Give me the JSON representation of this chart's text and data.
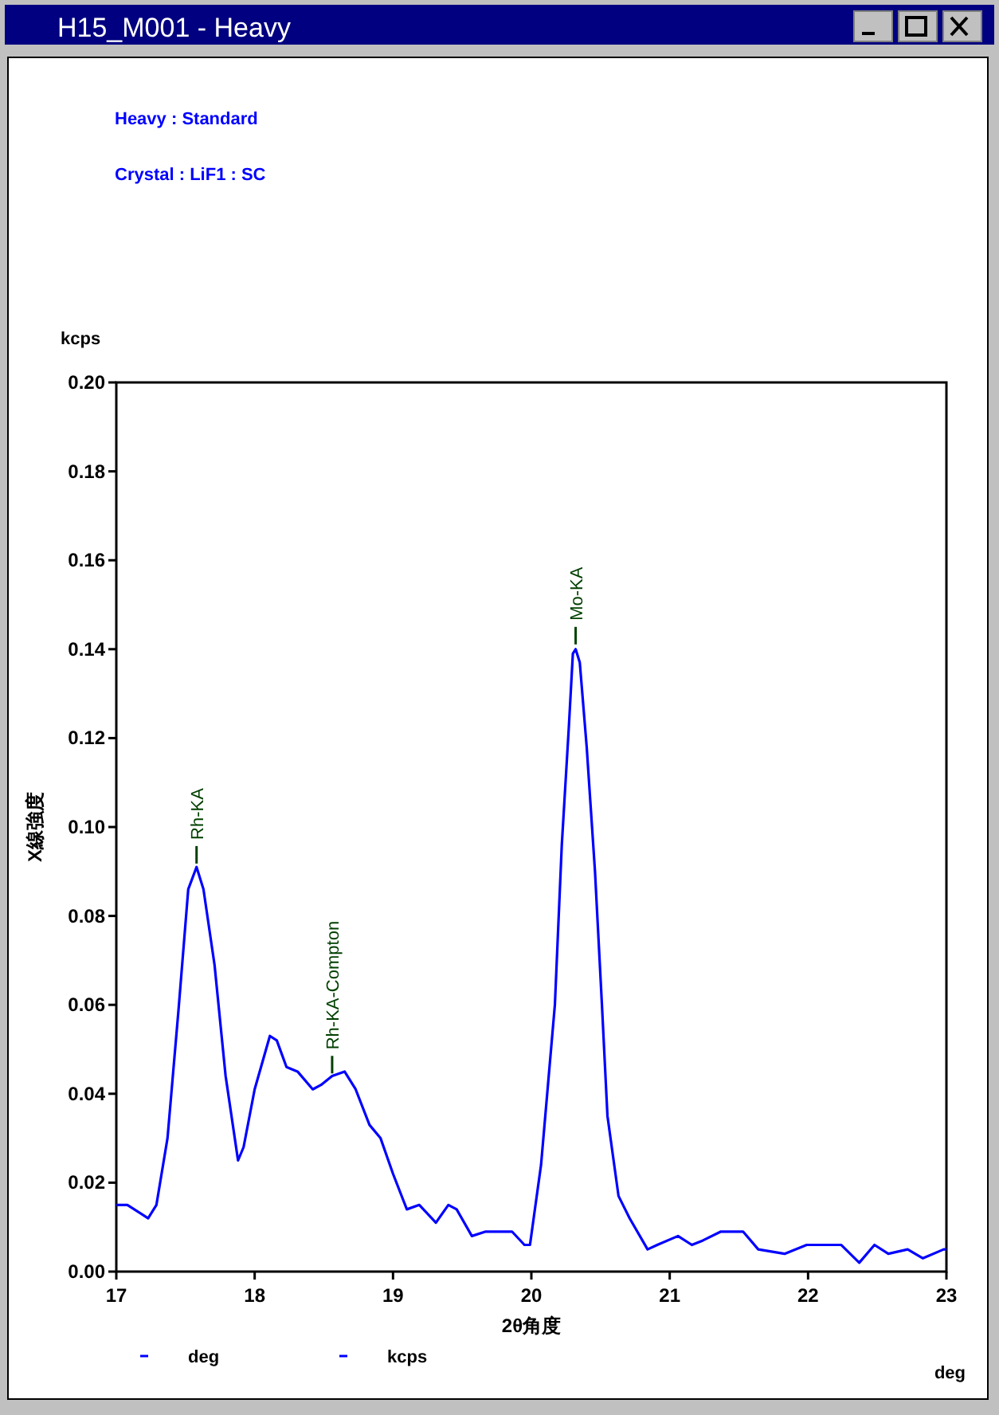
{
  "chart_data": {
    "type": "line",
    "title": "H15_M001 - Heavy",
    "xlabel": "2θ角度",
    "ylabel": "X線強度",
    "annotations": [
      "Heavy : Standard",
      "Crystal : LiF1 : SC",
      "kcps",
      "deg",
      "deg",
      "kcps",
      {
        "text": "Rh-KA",
        "x": 17.58,
        "y": 0.0907
      },
      {
        "text": "Rh-KA-Compton",
        "x": 18.56,
        "y": 0.0435
      },
      {
        "text": "Mo-KA",
        "x": 20.32,
        "y": 0.14
      }
    ],
    "series": [
      {
        "color": "#0000ff",
        "x": [
          17.0,
          17.08,
          17.23,
          17.29,
          17.37,
          17.45,
          17.52,
          17.58,
          17.63,
          17.71,
          17.79,
          17.88,
          17.92,
          18.0,
          18.11,
          18.16,
          18.23,
          18.31,
          18.42,
          18.48,
          18.56,
          18.65,
          18.73,
          18.83,
          18.91,
          19.0,
          19.1,
          19.19,
          19.31,
          19.4,
          19.46,
          19.57,
          19.67,
          19.81,
          19.86,
          19.95,
          19.99,
          20.07,
          20.12,
          20.17,
          20.22,
          20.27,
          20.3,
          20.32,
          20.35,
          20.4,
          20.46,
          20.51,
          20.55,
          20.63,
          20.71,
          20.84,
          20.91,
          21.06,
          21.16,
          21.24,
          21.37,
          21.53,
          21.64,
          21.83,
          21.99,
          22.14,
          22.24,
          22.37,
          22.48,
          22.58,
          22.72,
          22.83,
          22.98,
          23.0
        ],
        "values": [
          0.015,
          0.015,
          0.012,
          0.015,
          0.03,
          0.059,
          0.086,
          0.091,
          0.086,
          0.069,
          0.044,
          0.025,
          0.028,
          0.041,
          0.053,
          0.052,
          0.046,
          0.045,
          0.041,
          0.042,
          0.044,
          0.045,
          0.041,
          0.033,
          0.03,
          0.022,
          0.014,
          0.015,
          0.011,
          0.015,
          0.014,
          0.008,
          0.009,
          0.009,
          0.009,
          0.006,
          0.006,
          0.024,
          0.042,
          0.06,
          0.096,
          0.122,
          0.139,
          0.14,
          0.137,
          0.118,
          0.09,
          0.06,
          0.035,
          0.017,
          0.012,
          0.005,
          0.006,
          0.008,
          0.006,
          0.007,
          0.009,
          0.009,
          0.005,
          0.004,
          0.006,
          0.006,
          0.006,
          0.002,
          0.006,
          0.004,
          0.005,
          0.003,
          0.005,
          0.005
        ]
      }
    ],
    "xlim": [
      17,
      23
    ],
    "ylim": [
      0,
      0.2
    ],
    "xticks": [
      17,
      18,
      19,
      20,
      21,
      22,
      23
    ],
    "yticks": [
      {
        "value": 0,
        "label": "0.00"
      },
      {
        "value": 0.02,
        "label": "0.02"
      },
      {
        "value": 0.04,
        "label": "0.04"
      },
      {
        "value": 0.06,
        "label": "0.06"
      },
      {
        "value": 0.08,
        "label": "0.08"
      },
      {
        "value": 0.1,
        "label": "0.10"
      },
      {
        "value": 0.12,
        "label": "0.12"
      },
      {
        "value": 0.14,
        "label": "0.14"
      },
      {
        "value": 0.16,
        "label": "0.16"
      },
      {
        "value": 0.18,
        "label": "0.18"
      },
      {
        "value": 0.2,
        "label": "0.20"
      }
    ],
    "grid": false,
    "marker": "none",
    "line_style": "solid"
  }
}
